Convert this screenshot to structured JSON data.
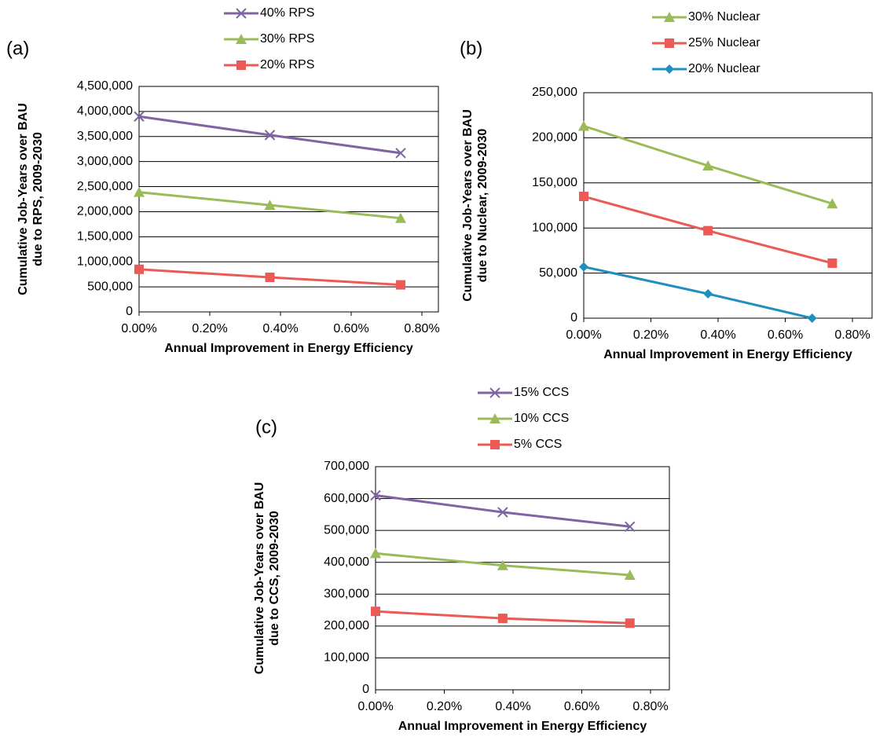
{
  "chart_data": [
    {
      "type": "line",
      "panel": "(a)",
      "xlabel": "Annual Improvement in Energy Efficiency",
      "ylabel": [
        "Cumulative Job-Years over BAU",
        "due to RPS, 2009-2030"
      ],
      "x": [
        0,
        0.37,
        0.74
      ],
      "xlim": [
        0,
        0.8
      ],
      "xticks": [
        {
          "value": 0,
          "label": "0.00%"
        },
        {
          "value": 0.2,
          "label": "0.20%"
        },
        {
          "value": 0.4,
          "label": "0.40%"
        },
        {
          "value": 0.6,
          "label": "0.60%"
        },
        {
          "value": 0.8,
          "label": "0.80%"
        }
      ],
      "ylim": [
        0,
        4500000
      ],
      "yticks": [
        0,
        {
          "value": 500000,
          "label": "500,000"
        },
        {
          "value": 1000000,
          "label": "1,000,000"
        },
        {
          "value": 1500000,
          "label": "1,500,000"
        },
        {
          "value": 2000000,
          "label": "2,000,000"
        },
        {
          "value": 2500000,
          "label": "2,500,000"
        },
        {
          "value": 3000000,
          "label": "3,000,000"
        },
        {
          "value": 3500000,
          "label": "3,500,000"
        },
        {
          "value": 4000000,
          "label": "4,000,000"
        },
        {
          "value": 4500000,
          "label": "4,500,000"
        }
      ],
      "grid": true,
      "series": [
        {
          "name": "40% RPS",
          "color": "#8064a2",
          "marker": "x",
          "values": [
            3900000,
            3530000,
            3170000
          ]
        },
        {
          "name": "30% RPS",
          "color": "#9bbb59",
          "marker": "triangle",
          "values": [
            2390000,
            2130000,
            1870000
          ]
        },
        {
          "name": "20% RPS",
          "color": "#ec5a55",
          "marker": "square",
          "values": [
            850000,
            690000,
            540000
          ]
        }
      ]
    },
    {
      "type": "line",
      "panel": "(b)",
      "xlabel": "Annual Improvement in Energy Efficiency",
      "ylabel": [
        "Cumulative Job-Years over BAU",
        "due to Nuclear, 2009-2030"
      ],
      "x": [
        0,
        0.37,
        0.74
      ],
      "xlim": [
        0,
        0.8
      ],
      "xticks": [
        {
          "value": 0,
          "label": "0.00%"
        },
        {
          "value": 0.2,
          "label": "0.20%"
        },
        {
          "value": 0.4,
          "label": "0.40%"
        },
        {
          "value": 0.6,
          "label": "0.60%"
        },
        {
          "value": 0.8,
          "label": "0.80%"
        }
      ],
      "ylim": [
        0,
        250000
      ],
      "yticks": [
        0,
        {
          "value": 50000,
          "label": "50,000"
        },
        {
          "value": 100000,
          "label": "100,000"
        },
        {
          "value": 150000,
          "label": "150,000"
        },
        {
          "value": 200000,
          "label": "200,000"
        },
        {
          "value": 250000,
          "label": "250,000"
        }
      ],
      "grid": true,
      "series": [
        {
          "name": "30% Nuclear",
          "color": "#9bbb59",
          "marker": "triangle",
          "values": [
            213000,
            169000,
            127000
          ]
        },
        {
          "name": "25% Nuclear",
          "color": "#ec5a55",
          "marker": "square",
          "values": [
            135000,
            97000,
            61000
          ]
        },
        {
          "name": "20% Nuclear",
          "color": "#1f8fc0",
          "marker": "diamond",
          "x": [
            0,
            0.37,
            0.68
          ],
          "values": [
            57000,
            27000,
            0
          ]
        }
      ]
    },
    {
      "type": "line",
      "panel": "(c)",
      "xlabel": "Annual Improvement in Energy Efficiency",
      "ylabel": [
        "Cumulative Job-Years over BAU",
        "due to CCS, 2009-2030"
      ],
      "x": [
        0,
        0.37,
        0.74
      ],
      "xlim": [
        0,
        0.8
      ],
      "xticks": [
        {
          "value": 0,
          "label": "0.00%"
        },
        {
          "value": 0.2,
          "label": "0.20%"
        },
        {
          "value": 0.4,
          "label": "0.40%"
        },
        {
          "value": 0.6,
          "label": "0.60%"
        },
        {
          "value": 0.8,
          "label": "0.80%"
        }
      ],
      "ylim": [
        0,
        700000
      ],
      "yticks": [
        0,
        {
          "value": 100000,
          "label": "100,000"
        },
        {
          "value": 200000,
          "label": "200,000"
        },
        {
          "value": 300000,
          "label": "300,000"
        },
        {
          "value": 400000,
          "label": "400,000"
        },
        {
          "value": 500000,
          "label": "500,000"
        },
        {
          "value": 600000,
          "label": "600,000"
        },
        {
          "value": 700000,
          "label": "700,000"
        }
      ],
      "grid": true,
      "series": [
        {
          "name": "15% CCS",
          "color": "#8064a2",
          "marker": "x",
          "values": [
            610000,
            557000,
            512000
          ]
        },
        {
          "name": "10% CCS",
          "color": "#9bbb59",
          "marker": "triangle",
          "values": [
            428000,
            390000,
            360000
          ]
        },
        {
          "name": "5% CCS",
          "color": "#ec5a55",
          "marker": "square",
          "values": [
            246000,
            224000,
            209000
          ]
        }
      ]
    }
  ]
}
